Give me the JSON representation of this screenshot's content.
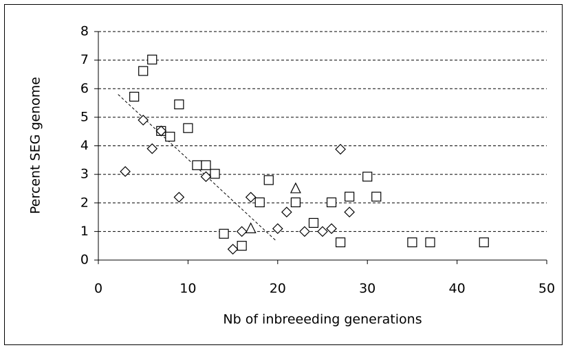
{
  "chart_data": {
    "type": "scatter",
    "xlabel": "Nb of inbreeeding generations",
    "ylabel": "Percent SEG genome",
    "xlim": [
      0,
      50
    ],
    "xticks": [
      0,
      10,
      20,
      30,
      40,
      50
    ],
    "ylim": [
      0,
      8
    ],
    "yticks": [
      0,
      1,
      2,
      3,
      4,
      5,
      6,
      7,
      8
    ],
    "grid": true,
    "series": [
      {
        "marker": "square",
        "color": "#000000",
        "x": [
          4,
          5,
          6,
          7,
          8,
          9,
          10,
          11,
          12,
          13,
          14,
          16,
          18,
          19,
          22,
          24,
          26,
          27,
          28,
          30,
          31,
          35,
          37,
          43
        ],
        "values": [
          5.72,
          6.62,
          7.02,
          4.52,
          4.32,
          5.45,
          4.62,
          3.32,
          3.32,
          3.02,
          0.92,
          0.5,
          2.02,
          2.8,
          2.02,
          1.3,
          2.02,
          0.62,
          2.22,
          2.92,
          2.22,
          0.62,
          0.62,
          0.62
        ]
      },
      {
        "marker": "diamond",
        "color": "#000000",
        "x": [
          3,
          5,
          6,
          7,
          9,
          12,
          15,
          16,
          17,
          20,
          21,
          23,
          25,
          26,
          27,
          28
        ],
        "values": [
          3.1,
          4.9,
          3.9,
          4.52,
          2.2,
          2.92,
          0.38,
          1.0,
          2.2,
          1.1,
          1.68,
          1.0,
          1.0,
          1.1,
          3.88,
          1.68
        ]
      },
      {
        "marker": "triangle",
        "color": "#000000",
        "x": [
          17,
          22
        ],
        "values": [
          1.1,
          2.5
        ]
      }
    ],
    "trendline": {
      "x": [
        2.2,
        19.9
      ],
      "values": [
        5.8,
        0.65
      ]
    }
  }
}
